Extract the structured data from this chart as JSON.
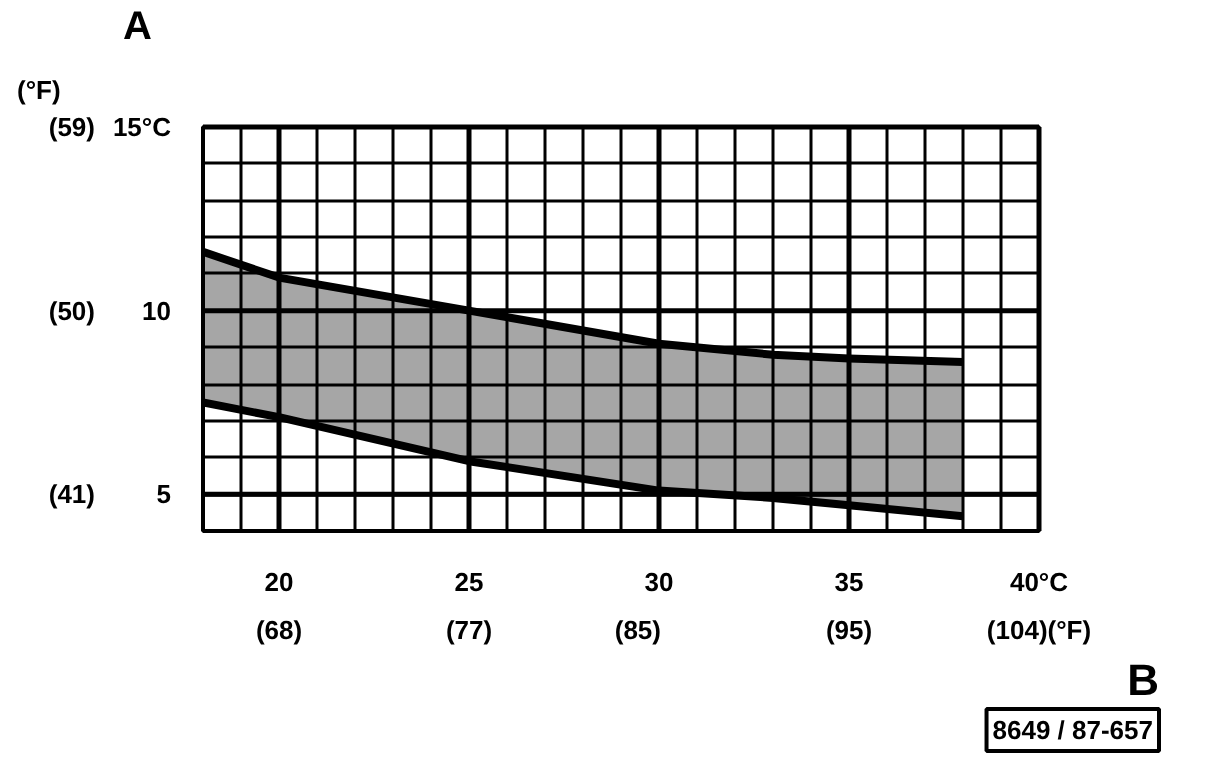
{
  "chart_data": {
    "type": "line",
    "xlabel": "B",
    "ylabel": "A",
    "y2label": "(°F)",
    "x": [
      18,
      20,
      25,
      30,
      33,
      35,
      38
    ],
    "series": [
      {
        "color": "#000000",
        "values": [
          11.6,
          10.9,
          10.0,
          9.1,
          8.8,
          8.7,
          8.6
        ],
        "lower": [
          7.5,
          7.1,
          5.9,
          5.1,
          4.9,
          4.7,
          4.4
        ],
        "upper": [
          11.6,
          10.9,
          10.0,
          9.1,
          8.8,
          8.7,
          8.6
        ]
      },
      {
        "color": "#000000",
        "values": [
          7.5,
          7.1,
          5.9,
          5.1,
          4.9,
          4.7,
          4.4
        ]
      }
    ],
    "xlim": [
      18,
      40
    ],
    "ylim": [
      4,
      15
    ],
    "xticks": [
      {
        "value": 19,
        "label": null
      },
      20,
      {
        "value": 21,
        "label": null
      },
      {
        "value": 22,
        "label": null
      },
      {
        "value": 23,
        "label": null
      },
      {
        "value": 24,
        "label": null
      },
      25,
      {
        "value": 26,
        "label": null
      },
      {
        "value": 27,
        "label": null
      },
      {
        "value": 28,
        "label": null
      },
      {
        "value": 29,
        "label": null
      },
      30,
      {
        "value": 31,
        "label": null
      },
      {
        "value": 32,
        "label": null
      },
      {
        "value": 33,
        "label": null
      },
      {
        "value": 34,
        "label": null
      },
      35,
      {
        "value": 36,
        "label": null
      },
      {
        "value": 37,
        "label": null
      },
      {
        "value": 38,
        "label": null
      },
      {
        "value": 39,
        "label": null
      },
      {
        "value": 40,
        "label": "40°C"
      }
    ],
    "yticks": [
      5,
      {
        "value": 6,
        "label": null
      },
      {
        "value": 7,
        "label": null
      },
      {
        "value": 8,
        "label": null
      },
      {
        "value": 9,
        "label": null
      },
      10,
      {
        "value": 11,
        "label": null
      },
      {
        "value": 12,
        "label": null
      },
      {
        "value": 13,
        "label": null
      },
      {
        "value": 14,
        "label": null
      },
      {
        "value": 15,
        "label": "15°C"
      }
    ],
    "x2lim": [
      64.4,
      104
    ],
    "x2ticks": [
      {
        "value": 68,
        "label": "(68)"
      },
      {
        "value": 77,
        "label": "(77)"
      },
      {
        "value": 85,
        "label": "(85)"
      },
      {
        "value": 95,
        "label": "(95)"
      },
      {
        "value": 104,
        "label": "(104)(°F)"
      }
    ],
    "y2lim": [
      39.2,
      59
    ],
    "y2ticks": [
      {
        "value": 41,
        "label": "(41)"
      },
      {
        "value": 50,
        "label": "(50)"
      },
      {
        "value": 59,
        "label": "(59)"
      }
    ],
    "grid": true,
    "annotations": [
      "8649 / 87-657"
    ]
  }
}
